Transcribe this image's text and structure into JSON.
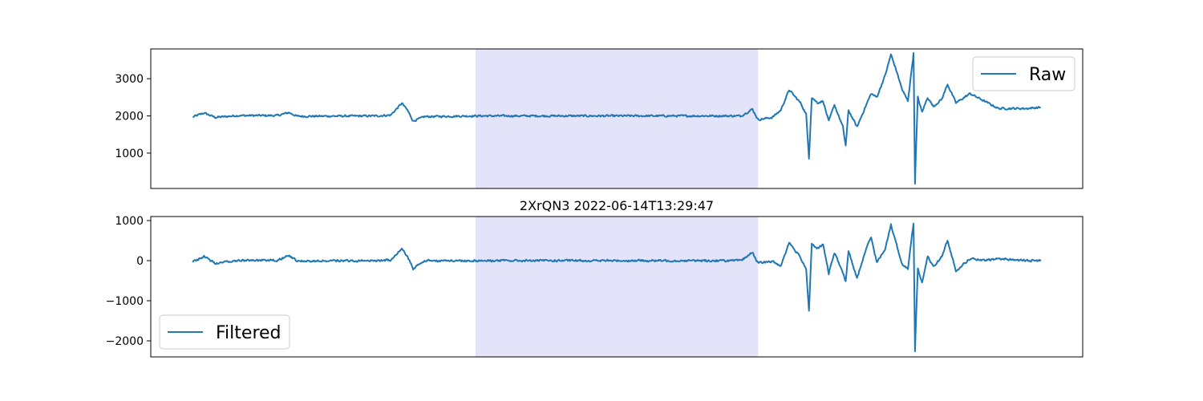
{
  "chart_data": [
    {
      "type": "line",
      "title": "",
      "xlabel": "",
      "ylabel": "",
      "x_range": [
        0,
        3000
      ],
      "ylim": [
        50,
        3800
      ],
      "yticks": [
        1000,
        2000,
        3000
      ],
      "ytick_labels": [
        "1000",
        "2000",
        "3000"
      ],
      "xticks_visible": false,
      "grid": false,
      "legend": {
        "position": "upper-right",
        "entries": [
          "Raw"
        ]
      },
      "highlight_span": {
        "x_start": 1000,
        "x_end": 2000,
        "color": "#e3e3fa"
      },
      "series": [
        {
          "name": "Raw",
          "color": "#1f77b4",
          "baseline": 2000,
          "noise": 35,
          "keypoints": [
            [
              0,
              1970
            ],
            [
              40,
              2080
            ],
            [
              80,
              1960
            ],
            [
              160,
              2010
            ],
            [
              300,
              2010
            ],
            [
              340,
              2090
            ],
            [
              370,
              1990
            ],
            [
              650,
              2000
            ],
            [
              700,
              2020
            ],
            [
              740,
              2340
            ],
            [
              760,
              2150
            ],
            [
              780,
              1860
            ],
            [
              820,
              1980
            ],
            [
              1000,
              2000
            ],
            [
              1940,
              2000
            ],
            [
              1980,
              2180
            ],
            [
              2000,
              1900
            ],
            [
              2050,
              1960
            ],
            [
              2080,
              2150
            ],
            [
              2110,
              2700
            ],
            [
              2150,
              2350
            ],
            [
              2170,
              2050
            ],
            [
              2180,
              870
            ],
            [
              2190,
              2500
            ],
            [
              2210,
              2350
            ],
            [
              2230,
              2400
            ],
            [
              2250,
              1850
            ],
            [
              2270,
              2300
            ],
            [
              2300,
              1700
            ],
            [
              2310,
              1200
            ],
            [
              2320,
              2150
            ],
            [
              2350,
              1700
            ],
            [
              2380,
              2250
            ],
            [
              2400,
              2600
            ],
            [
              2420,
              2500
            ],
            [
              2450,
              3100
            ],
            [
              2470,
              3650
            ],
            [
              2490,
              3200
            ],
            [
              2510,
              2700
            ],
            [
              2530,
              2400
            ],
            [
              2550,
              3680
            ],
            [
              2555,
              200
            ],
            [
              2565,
              2500
            ],
            [
              2580,
              2100
            ],
            [
              2600,
              2500
            ],
            [
              2620,
              2250
            ],
            [
              2650,
              2450
            ],
            [
              2670,
              2850
            ],
            [
              2700,
              2350
            ],
            [
              2750,
              2600
            ],
            [
              2800,
              2400
            ],
            [
              2850,
              2200
            ],
            [
              2950,
              2200
            ],
            [
              3000,
              2230
            ]
          ]
        }
      ]
    },
    {
      "type": "line",
      "title": "2XrQN3 2022-06-14T13:29:47",
      "xlabel": "",
      "ylabel": "",
      "x_range": [
        0,
        3000
      ],
      "ylim": [
        -2400,
        1100
      ],
      "yticks": [
        -2000,
        -1000,
        0,
        1000
      ],
      "ytick_labels": [
        "−2000",
        "−1000",
        "0",
        "1000"
      ],
      "xticks_visible": false,
      "grid": false,
      "legend": {
        "position": "lower-left",
        "entries": [
          "Filtered"
        ]
      },
      "highlight_span": {
        "x_start": 1000,
        "x_end": 2000,
        "color": "#e3e3fa"
      },
      "series": [
        {
          "name": "Filtered",
          "color": "#1f77b4",
          "baseline": 0,
          "noise": 35,
          "keypoints": [
            [
              0,
              -30
            ],
            [
              40,
              100
            ],
            [
              80,
              -60
            ],
            [
              160,
              10
            ],
            [
              300,
              10
            ],
            [
              340,
              130
            ],
            [
              370,
              -10
            ],
            [
              650,
              0
            ],
            [
              700,
              20
            ],
            [
              740,
              310
            ],
            [
              760,
              100
            ],
            [
              780,
              -200
            ],
            [
              820,
              0
            ],
            [
              1000,
              0
            ],
            [
              1940,
              0
            ],
            [
              1980,
              210
            ],
            [
              2000,
              -60
            ],
            [
              2050,
              -20
            ],
            [
              2080,
              -130
            ],
            [
              2110,
              450
            ],
            [
              2150,
              80
            ],
            [
              2170,
              -200
            ],
            [
              2180,
              -1230
            ],
            [
              2190,
              400
            ],
            [
              2210,
              300
            ],
            [
              2230,
              400
            ],
            [
              2250,
              -320
            ],
            [
              2270,
              200
            ],
            [
              2300,
              -300
            ],
            [
              2310,
              -530
            ],
            [
              2320,
              250
            ],
            [
              2350,
              -450
            ],
            [
              2380,
              250
            ],
            [
              2400,
              600
            ],
            [
              2420,
              -50
            ],
            [
              2450,
              300
            ],
            [
              2470,
              900
            ],
            [
              2490,
              400
            ],
            [
              2510,
              -100
            ],
            [
              2530,
              -200
            ],
            [
              2550,
              950
            ],
            [
              2555,
              -2250
            ],
            [
              2565,
              -200
            ],
            [
              2580,
              -550
            ],
            [
              2600,
              100
            ],
            [
              2620,
              -150
            ],
            [
              2650,
              100
            ],
            [
              2670,
              500
            ],
            [
              2700,
              -250
            ],
            [
              2750,
              50
            ],
            [
              2800,
              0
            ],
            [
              2850,
              50
            ],
            [
              2950,
              0
            ],
            [
              3000,
              0
            ]
          ]
        }
      ]
    }
  ]
}
